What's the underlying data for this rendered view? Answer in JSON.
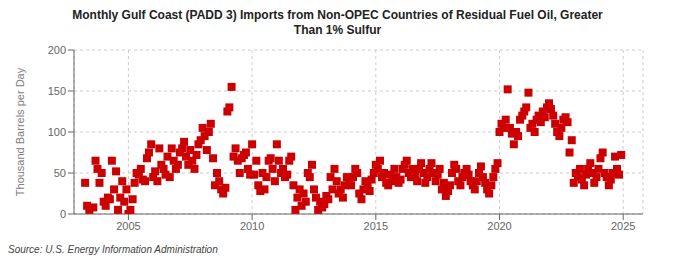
{
  "chart_data": {
    "type": "scatter",
    "title": "Monthly Gulf Coast (PADD 3) Imports from Non-OPEC Countries of Residual Fuel Oil, Greater\nThan 1% Sulfur",
    "ylabel": "Thousand Barrels per Day",
    "annotations": [
      "Source: U.S. Energy Information Administration"
    ],
    "color": "#cc0000",
    "marker": "square",
    "grid": true,
    "xlim": [
      2002.8,
      2025.8
    ],
    "xticks": [
      2005,
      2010,
      2015,
      2020,
      2025
    ],
    "ylim": [
      0,
      200
    ],
    "yticks": [
      0,
      50,
      100,
      150,
      200
    ],
    "x": [
      2003.25,
      2003.33,
      2003.42,
      2003.58,
      2003.67,
      2003.75,
      2003.83,
      2003.92,
      2004.0,
      2004.08,
      2004.17,
      2004.25,
      2004.33,
      2004.42,
      2004.5,
      2004.58,
      2004.67,
      2004.75,
      2004.83,
      2004.92,
      2005.0,
      2005.08,
      2005.17,
      2005.25,
      2005.33,
      2005.42,
      2005.5,
      2005.58,
      2005.67,
      2005.75,
      2005.83,
      2005.92,
      2006.0,
      2006.08,
      2006.17,
      2006.25,
      2006.33,
      2006.42,
      2006.5,
      2006.58,
      2006.67,
      2006.75,
      2006.83,
      2006.92,
      2007.0,
      2007.08,
      2007.17,
      2007.25,
      2007.33,
      2007.42,
      2007.5,
      2007.58,
      2007.67,
      2007.75,
      2007.83,
      2007.92,
      2008.0,
      2008.08,
      2008.17,
      2008.25,
      2008.33,
      2008.42,
      2008.5,
      2008.58,
      2008.67,
      2008.75,
      2008.83,
      2008.92,
      2009.0,
      2009.08,
      2009.17,
      2009.25,
      2009.33,
      2009.42,
      2009.5,
      2009.58,
      2009.67,
      2009.75,
      2009.83,
      2009.92,
      2010.0,
      2010.08,
      2010.17,
      2010.25,
      2010.33,
      2010.42,
      2010.5,
      2010.58,
      2010.67,
      2010.75,
      2010.83,
      2010.92,
      2011.0,
      2011.08,
      2011.17,
      2011.25,
      2011.33,
      2011.42,
      2011.5,
      2011.58,
      2011.67,
      2011.75,
      2011.83,
      2011.92,
      2012.0,
      2012.08,
      2012.17,
      2012.25,
      2012.33,
      2012.42,
      2012.5,
      2012.58,
      2012.67,
      2012.75,
      2012.83,
      2012.92,
      2013.0,
      2013.08,
      2013.17,
      2013.25,
      2013.33,
      2013.42,
      2013.5,
      2013.58,
      2013.67,
      2013.75,
      2013.83,
      2013.92,
      2014.0,
      2014.08,
      2014.17,
      2014.25,
      2014.33,
      2014.42,
      2014.5,
      2014.58,
      2014.67,
      2014.75,
      2014.83,
      2014.92,
      2015.0,
      2015.08,
      2015.17,
      2015.25,
      2015.33,
      2015.42,
      2015.5,
      2015.58,
      2015.67,
      2015.75,
      2015.83,
      2015.92,
      2016.0,
      2016.08,
      2016.17,
      2016.25,
      2016.33,
      2016.42,
      2016.5,
      2016.58,
      2016.67,
      2016.75,
      2016.83,
      2016.92,
      2017.0,
      2017.08,
      2017.17,
      2017.25,
      2017.33,
      2017.42,
      2017.5,
      2017.58,
      2017.67,
      2017.75,
      2017.83,
      2017.92,
      2018.0,
      2018.08,
      2018.17,
      2018.25,
      2018.33,
      2018.42,
      2018.5,
      2018.58,
      2018.67,
      2018.75,
      2018.83,
      2018.92,
      2019.0,
      2019.08,
      2019.17,
      2019.25,
      2019.33,
      2019.42,
      2019.5,
      2019.58,
      2019.67,
      2019.75,
      2019.83,
      2019.92,
      2020.0,
      2020.08,
      2020.17,
      2020.25,
      2020.33,
      2020.42,
      2020.5,
      2020.58,
      2020.67,
      2020.75,
      2020.83,
      2020.92,
      2021.0,
      2021.08,
      2021.17,
      2021.25,
      2021.33,
      2021.42,
      2021.5,
      2021.58,
      2021.67,
      2021.75,
      2021.83,
      2021.92,
      2022.0,
      2022.08,
      2022.17,
      2022.25,
      2022.33,
      2022.42,
      2022.5,
      2022.58,
      2022.67,
      2022.75,
      2022.83,
      2022.92,
      2023.0,
      2023.08,
      2023.17,
      2023.25,
      2023.33,
      2023.42,
      2023.5,
      2023.58,
      2023.67,
      2023.75,
      2023.83,
      2023.92,
      2024.0,
      2024.08,
      2024.17,
      2024.25,
      2024.33,
      2024.42,
      2024.5,
      2024.58,
      2024.67,
      2024.75,
      2024.83,
      2024.92
    ],
    "values": [
      38,
      10,
      5,
      8,
      65,
      55,
      38,
      50,
      15,
      10,
      20,
      18,
      65,
      30,
      52,
      5,
      20,
      40,
      15,
      30,
      0,
      5,
      18,
      38,
      50,
      48,
      55,
      42,
      40,
      68,
      75,
      85,
      45,
      52,
      40,
      80,
      60,
      55,
      48,
      70,
      45,
      80,
      65,
      55,
      60,
      75,
      80,
      88,
      70,
      60,
      78,
      65,
      55,
      72,
      85,
      90,
      105,
      95,
      78,
      100,
      110,
      68,
      35,
      50,
      40,
      30,
      25,
      32,
      125,
      130,
      155,
      70,
      80,
      65,
      50,
      68,
      72,
      75,
      55,
      48,
      85,
      48,
      65,
      35,
      28,
      50,
      30,
      45,
      65,
      68,
      55,
      40,
      85,
      65,
      50,
      55,
      45,
      48,
      65,
      70,
      35,
      5,
      20,
      30,
      10,
      25,
      15,
      50,
      45,
      60,
      30,
      20,
      5,
      15,
      8,
      12,
      22,
      18,
      45,
      30,
      55,
      40,
      25,
      30,
      20,
      35,
      45,
      40,
      35,
      45,
      55,
      50,
      25,
      18,
      30,
      40,
      35,
      28,
      42,
      50,
      60,
      55,
      65,
      45,
      50,
      38,
      35,
      48,
      40,
      55,
      45,
      38,
      42,
      55,
      60,
      65,
      50,
      45,
      55,
      48,
      40,
      55,
      62,
      50,
      38,
      45,
      55,
      62,
      50,
      40,
      48,
      55,
      30,
      38,
      22,
      28,
      35,
      50,
      60,
      55,
      40,
      35,
      45,
      50,
      55,
      48,
      40,
      35,
      30,
      40,
      50,
      58,
      45,
      38,
      30,
      25,
      35,
      45,
      55,
      62,
      100,
      110,
      105,
      115,
      152,
      105,
      98,
      85,
      100,
      95,
      115,
      120,
      125,
      130,
      148,
      105,
      110,
      100,
      115,
      120,
      112,
      125,
      118,
      130,
      135,
      128,
      120,
      110,
      100,
      95,
      105,
      115,
      118,
      112,
      75,
      90,
      38,
      50,
      45,
      55,
      42,
      35,
      48,
      55,
      62,
      50,
      38,
      45,
      55,
      68,
      75,
      50,
      45,
      35,
      42,
      50,
      70,
      55,
      48,
      72
    ]
  }
}
